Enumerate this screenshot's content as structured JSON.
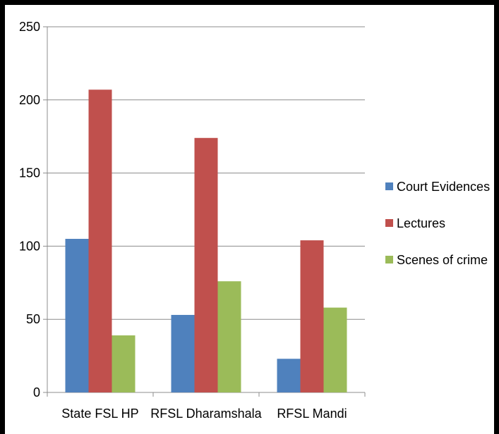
{
  "chart_data": {
    "type": "bar",
    "categories": [
      "State FSL HP",
      "RFSL Dharamshala",
      "RFSL Mandi"
    ],
    "series": [
      {
        "name": "Court Evidences",
        "values": [
          105,
          53,
          23
        ],
        "color": "#4f81bd"
      },
      {
        "name": "Lectures",
        "values": [
          207,
          174,
          104
        ],
        "color": "#c0504d"
      },
      {
        "name": "Scenes of crime",
        "values": [
          39,
          76,
          58
        ],
        "color": "#9bbb59"
      }
    ],
    "yticks": [
      0,
      50,
      100,
      150,
      200,
      250
    ],
    "ylim": [
      0,
      250
    ],
    "grid": true,
    "legend_position": "right",
    "title": "",
    "xlabel": "",
    "ylabel": ""
  }
}
